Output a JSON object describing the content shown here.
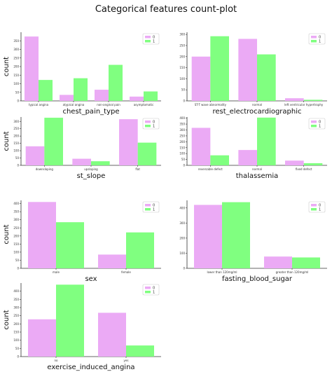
{
  "title": "Categorical features count-plot",
  "colors": {
    "series_0": "#EBAAF5",
    "series_1": "#80FF80"
  },
  "chart_data": [
    {
      "type": "bar",
      "xlabel": "chest_pain_type",
      "ylabel": "count",
      "categories": [
        "typical angina",
        "atypical angina",
        "non-anginal pain",
        "asymptomatic"
      ],
      "series": [
        {
          "name": "0",
          "values": [
            375,
            35,
            65,
            25
          ]
        },
        {
          "name": "1",
          "values": [
            122,
            132,
            210,
            55
          ]
        }
      ],
      "ylim": [
        0,
        400
      ],
      "yticks": [
        0,
        50,
        100,
        150,
        200,
        250,
        300,
        350
      ],
      "legend": "top-right"
    },
    {
      "type": "bar",
      "xlabel": "rest_electrocardiographic",
      "ylabel": "",
      "categories": [
        "ST-T wave abnormality",
        "normal",
        "left ventricular hypertrophy"
      ],
      "series": [
        {
          "name": "0",
          "values": [
            200,
            280,
            12
          ]
        },
        {
          "name": "1",
          "values": [
            292,
            210,
            5
          ]
        }
      ],
      "ylim": [
        0,
        310
      ],
      "yticks": [
        0,
        50,
        100,
        150,
        200,
        250,
        300
      ],
      "legend": "top-right"
    },
    {
      "type": "bar",
      "xlabel": "st_slope",
      "ylabel": "count",
      "categories": [
        "downsloping",
        "upsloping",
        "flat"
      ],
      "series": [
        {
          "name": "0",
          "values": [
            130,
            45,
            315
          ]
        },
        {
          "name": "1",
          "values": [
            325,
            28,
            155
          ]
        }
      ],
      "ylim": [
        0,
        330
      ],
      "yticks": [
        0,
        50,
        100,
        150,
        200,
        250,
        300
      ],
      "legend": "top-right"
    },
    {
      "type": "bar",
      "xlabel": "thalassemia",
      "ylabel": "",
      "categories": [
        "reversable defect",
        "normal",
        "fixed defect"
      ],
      "series": [
        {
          "name": "0",
          "values": [
            318,
            130,
            40
          ]
        },
        {
          "name": "1",
          "values": [
            85,
            405,
            18
          ]
        }
      ],
      "ylim": [
        0,
        410
      ],
      "yticks": [
        0,
        50,
        100,
        150,
        200,
        250,
        300,
        350,
        400
      ],
      "legend": "top-right"
    },
    {
      "type": "bar",
      "xlabel": "sex",
      "ylabel": "count",
      "categories": [
        "male",
        "female"
      ],
      "series": [
        {
          "name": "0",
          "values": [
            410,
            85
          ]
        },
        {
          "name": "1",
          "values": [
            285,
            222
          ]
        }
      ],
      "ylim": [
        0,
        420
      ],
      "yticks": [
        0,
        50,
        100,
        150,
        200,
        250,
        300,
        350,
        400
      ],
      "legend": "top-right"
    },
    {
      "type": "bar",
      "xlabel": "fasting_blood_sugar",
      "ylabel": "",
      "categories": [
        "lower than 120mg/ml",
        "greater than 120mg/ml"
      ],
      "series": [
        {
          "name": "0",
          "values": [
            420,
            78
          ]
        },
        {
          "name": "1",
          "values": [
            438,
            72
          ]
        }
      ],
      "ylim": [
        0,
        450
      ],
      "yticks": [
        0,
        100,
        200,
        300,
        400
      ],
      "legend": "top-right"
    },
    {
      "type": "bar",
      "xlabel": "exercise_induced_angina",
      "ylabel": "count",
      "categories": [
        "no",
        "yes"
      ],
      "series": [
        {
          "name": "0",
          "values": [
            228,
            268
          ]
        },
        {
          "name": "1",
          "values": [
            440,
            68
          ]
        }
      ],
      "ylim": [
        0,
        450
      ],
      "yticks": [
        0,
        50,
        100,
        150,
        200,
        250,
        300,
        350,
        400
      ],
      "legend": "top-right"
    }
  ]
}
